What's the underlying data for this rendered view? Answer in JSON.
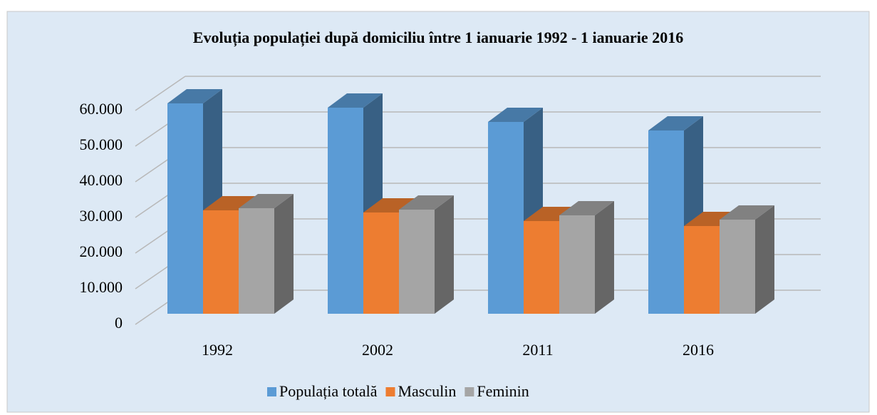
{
  "chart_data": {
    "type": "bar3d",
    "title": "Evoluția populației după domiciliu între 1 ianuarie 1992 - 1 ianuarie 2016",
    "categories": [
      "1992",
      "2002",
      "2011",
      "2016"
    ],
    "series": [
      {
        "name": "Populația totală",
        "color": "#5b9bd5",
        "values": [
          59000,
          57800,
          53800,
          51400
        ]
      },
      {
        "name": "Masculin",
        "color": "#ed7d31",
        "values": [
          29000,
          28400,
          26000,
          24600
        ]
      },
      {
        "name": "Feminin",
        "color": "#a5a5a5",
        "values": [
          29600,
          29200,
          27600,
          26400
        ]
      }
    ],
    "ylim": [
      0,
      60000
    ],
    "yticks": [
      0,
      {
        "value": 10000,
        "label": "10.000"
      },
      {
        "value": 20000,
        "label": "20.000"
      },
      {
        "value": 30000,
        "label": "30.000"
      },
      {
        "value": 40000,
        "label": "40.000"
      },
      {
        "value": 50000,
        "label": "50.000"
      },
      {
        "value": 60000,
        "label": "60.000"
      }
    ],
    "grid": true,
    "legend": "bottom"
  }
}
